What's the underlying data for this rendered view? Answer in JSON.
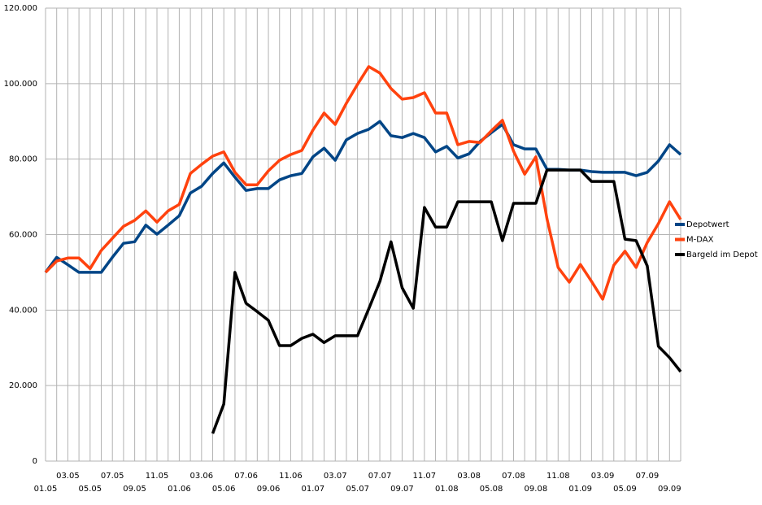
{
  "chart_data": {
    "type": "line",
    "categories": [
      "01.05",
      null,
      "03.05",
      null,
      "05.05",
      null,
      "07.05",
      null,
      "09.05",
      null,
      "11.05",
      null,
      "01.06",
      null,
      "03.06",
      null,
      "05.06",
      null,
      "07.06",
      null,
      "09.06",
      null,
      "11.06",
      null,
      "01.07",
      null,
      "03.07",
      null,
      "05.07",
      null,
      "07.07",
      null,
      "09.07",
      null,
      "11.07",
      null,
      "01.08",
      null,
      "03.08",
      null,
      "05.08",
      null,
      "07.08",
      null,
      "09.08",
      null,
      "11.08",
      null,
      "01.09",
      null,
      "03.09",
      null,
      "05.09",
      null,
      "07.09",
      null,
      "09.09",
      null
    ],
    "series": [
      {
        "name": "Depotwert",
        "color": "#004586",
        "values": [
          50000,
          54000,
          52000,
          50000,
          50000,
          50000,
          54000,
          57700,
          58100,
          62500,
          60100,
          62500,
          65000,
          71000,
          72800,
          76200,
          79000,
          75200,
          71700,
          72200,
          72200,
          74500,
          75600,
          76200,
          80600,
          82900,
          79700,
          85100,
          86800,
          87900,
          90000,
          86200,
          85700,
          86800,
          85700,
          81900,
          83400,
          80300,
          81400,
          84700,
          87000,
          89200,
          83800,
          82700,
          82700,
          77300,
          77300,
          77100,
          77100,
          76700,
          76500,
          76500,
          76500,
          75600,
          76500,
          79500,
          83800,
          81200
        ]
      },
      {
        "name": "M-DAX",
        "color": "#ff420e",
        "values": [
          50000,
          53000,
          53800,
          53800,
          51000,
          55800,
          59000,
          62200,
          63800,
          66300,
          63300,
          66300,
          68000,
          76200,
          78600,
          80800,
          81900,
          76500,
          73200,
          73200,
          76900,
          79700,
          81200,
          82300,
          87700,
          92200,
          89200,
          94800,
          99800,
          104500,
          102800,
          98700,
          95900,
          96300,
          97600,
          92200,
          92200,
          83800,
          84700,
          84400,
          87500,
          90300,
          82100,
          76000,
          80600,
          64200,
          51300,
          47400,
          52100,
          47600,
          42900,
          51900,
          55600,
          51300,
          57900,
          62900,
          68700,
          64000
        ]
      },
      {
        "name": "Bargeld im Depot",
        "color": "#000000",
        "values": [
          null,
          null,
          null,
          null,
          null,
          null,
          null,
          null,
          null,
          null,
          null,
          null,
          null,
          null,
          null,
          7300,
          15100,
          50000,
          41800,
          39600,
          37300,
          30600,
          30600,
          32500,
          33600,
          31400,
          33200,
          33200,
          33200,
          40300,
          47600,
          58100,
          45900,
          40500,
          67200,
          62000,
          62000,
          68700,
          68700,
          68700,
          68700,
          58400,
          68300,
          68300,
          68300,
          77100,
          77100,
          77100,
          77100,
          74100,
          74100,
          74100,
          58800,
          58400,
          51700,
          30400,
          27400,
          23700
        ]
      }
    ],
    "ylim": [
      0,
      120000
    ],
    "yticks": [
      0,
      {
        "value": 20000,
        "label": "20.000"
      },
      {
        "value": 40000,
        "label": "40.000"
      },
      {
        "value": 60000,
        "label": "60.000"
      },
      {
        "value": 80000,
        "label": "80.000"
      },
      {
        "value": 100000,
        "label": "100.000"
      },
      {
        "value": 120000,
        "label": "120.000"
      }
    ],
    "grid": true,
    "legend": "right"
  }
}
